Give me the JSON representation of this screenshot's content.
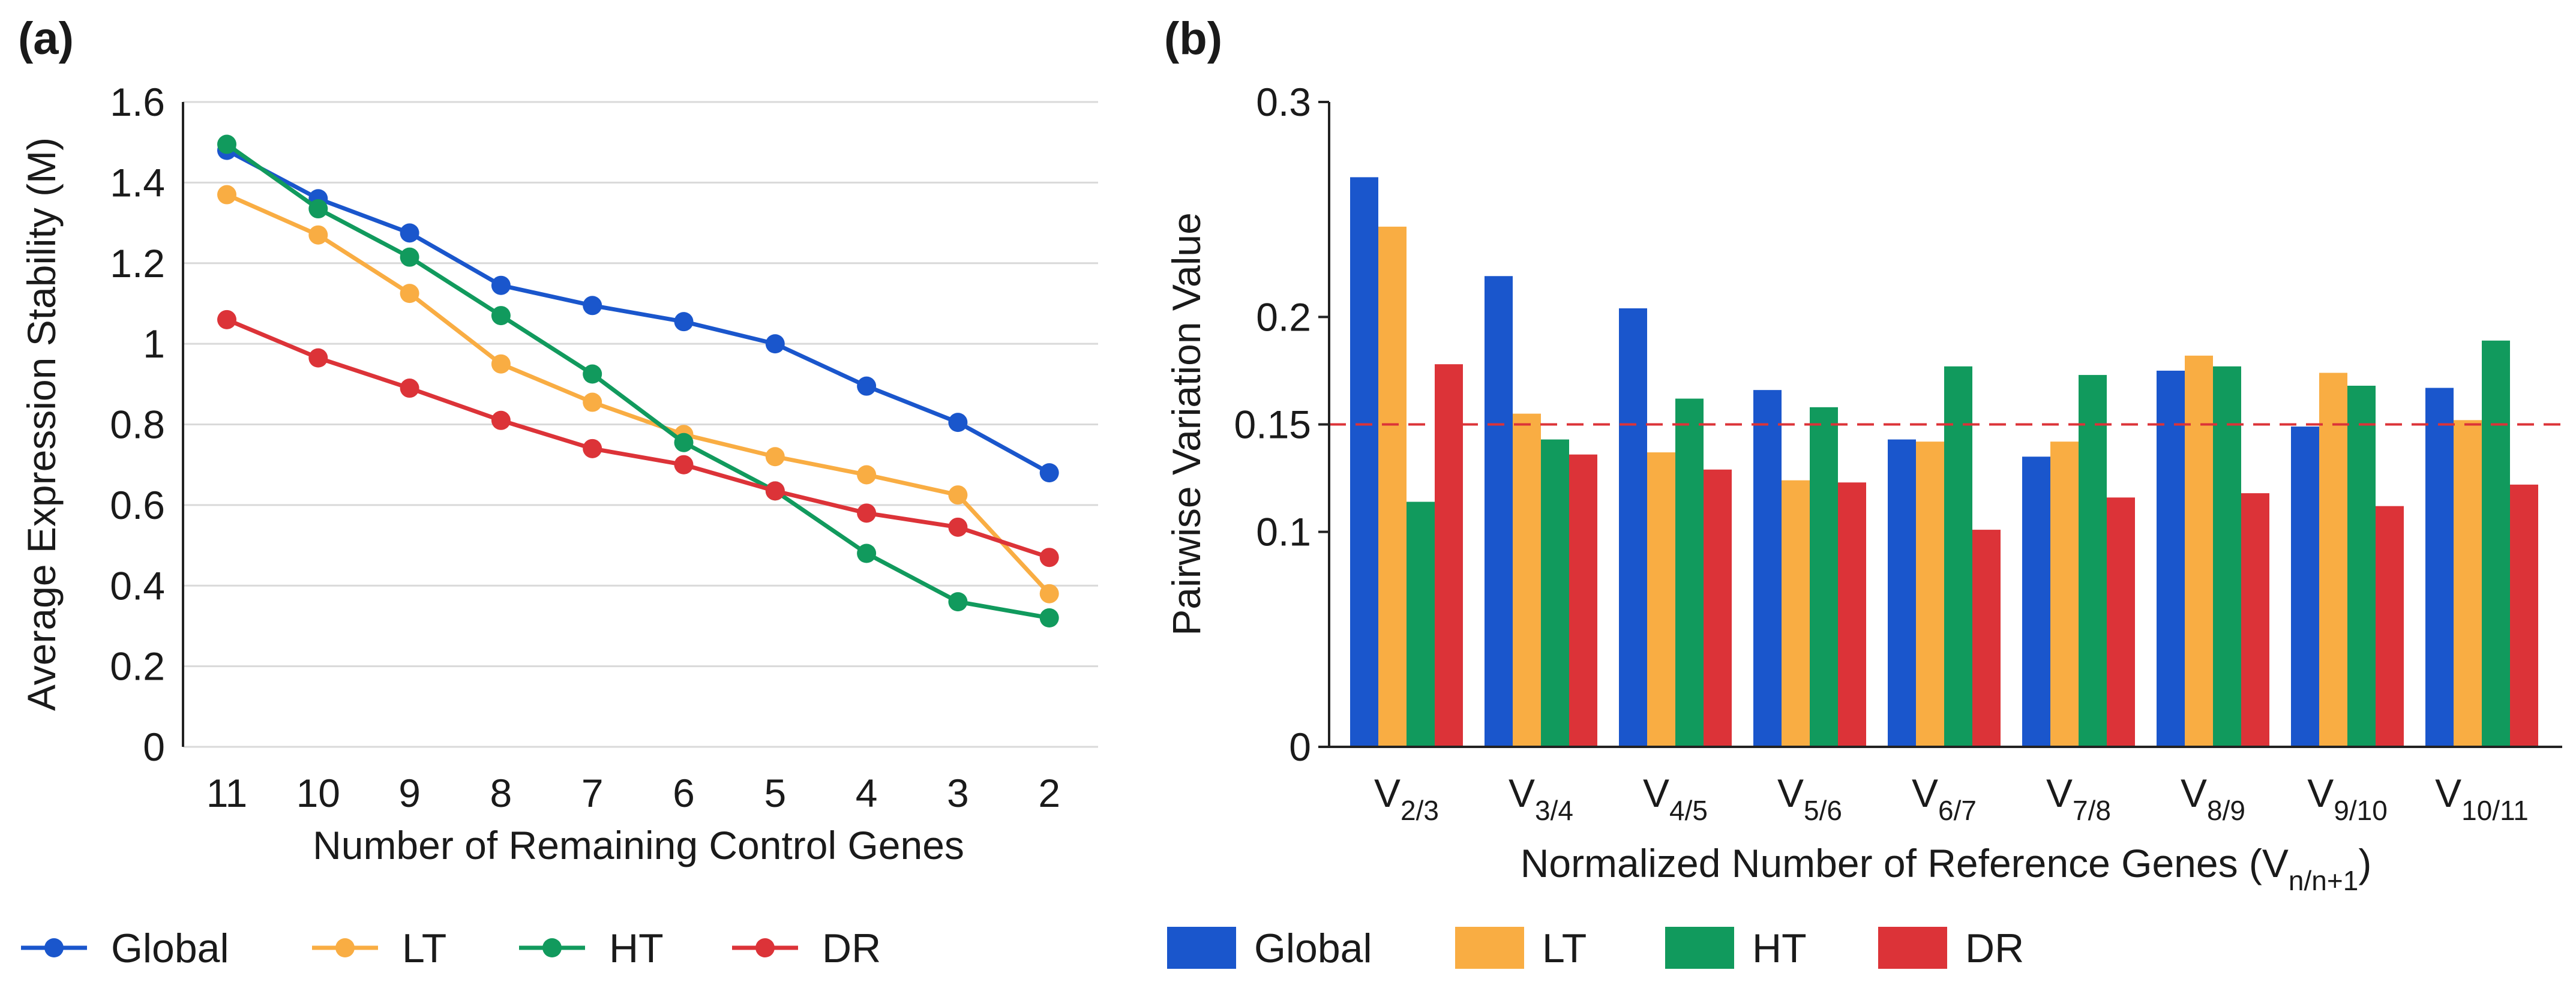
{
  "chart_data": [
    {
      "panel_label": "(a)",
      "type": "line",
      "categories": [
        "11",
        "10",
        "9",
        "8",
        "7",
        "6",
        "5",
        "4",
        "3",
        "2"
      ],
      "series": [
        {
          "name": "Global",
          "color": "#1a56cc",
          "values": [
            1.48,
            1.36,
            1.275,
            1.145,
            1.095,
            1.055,
            1.0,
            0.895,
            0.805,
            0.68
          ]
        },
        {
          "name": "LT",
          "color": "#f9ad43",
          "values": [
            1.37,
            1.27,
            1.125,
            0.95,
            0.855,
            0.775,
            0.72,
            0.675,
            0.625,
            0.38
          ]
        },
        {
          "name": "HT",
          "color": "#119a5d",
          "values": [
            1.495,
            1.335,
            1.215,
            1.07,
            0.925,
            0.755,
            0.635,
            0.48,
            0.36,
            0.32
          ]
        },
        {
          "name": "DR",
          "color": "#dc3338",
          "values": [
            1.06,
            0.965,
            0.89,
            0.81,
            0.74,
            0.7,
            0.635,
            0.58,
            0.545,
            0.47
          ]
        }
      ],
      "ylim": [
        0,
        1.6
      ],
      "yticks": [
        "0",
        "0.2",
        "0.4",
        "0.6",
        "0.8",
        "1",
        "1.2",
        "1.4",
        "1.6"
      ],
      "xlabel": "Number of Remaining Control Genes",
      "ylabel": "Average Expression Stability (M)",
      "grid": "horizontal",
      "legend": [
        "Global",
        "LT",
        "HT",
        "DR"
      ],
      "legend_position": "bottom"
    },
    {
      "panel_label": "(b)",
      "type": "bar",
      "categories": [
        {
          "main": "V",
          "sub": "2/3"
        },
        {
          "main": "V",
          "sub": "3/4"
        },
        {
          "main": "V",
          "sub": "4/5"
        },
        {
          "main": "V",
          "sub": "5/6"
        },
        {
          "main": "V",
          "sub": "6/7"
        },
        {
          "main": "V",
          "sub": "7/8"
        },
        {
          "main": "V",
          "sub": "8/9"
        },
        {
          "main": "V",
          "sub": "9/10"
        },
        {
          "main": "V",
          "sub": "10/11"
        }
      ],
      "series": [
        {
          "name": "Global",
          "color": "#1a56cc",
          "values": [
            0.265,
            0.219,
            0.204,
            0.166,
            0.143,
            0.135,
            0.175,
            0.149,
            0.167
          ]
        },
        {
          "name": "LT",
          "color": "#f9ad43",
          "values": [
            0.242,
            0.155,
            0.137,
            0.124,
            0.142,
            0.142,
            0.182,
            0.174,
            0.152
          ]
        },
        {
          "name": "HT",
          "color": "#119a5d",
          "values": [
            0.114,
            0.143,
            0.162,
            0.158,
            0.177,
            0.173,
            0.177,
            0.168,
            0.189
          ]
        },
        {
          "name": "DR",
          "color": "#dc3338",
          "values": [
            0.178,
            0.136,
            0.129,
            0.123,
            0.101,
            0.116,
            0.118,
            0.112,
            0.122
          ]
        }
      ],
      "ylim": [
        0,
        0.3
      ],
      "yticks": [
        "0",
        "0.1",
        "0.15",
        "0.2",
        "0.3"
      ],
      "threshold": {
        "value": 0.15,
        "color": "#dc3338",
        "style": "dashed"
      },
      "xlabel": {
        "main": "Normalized Number of Reference Genes (V",
        "sub": "n/n+1",
        "close": ")"
      },
      "ylabel": "Pairwise Variation Value",
      "grid": "none",
      "legend": [
        "Global",
        "LT",
        "HT",
        "DR"
      ],
      "legend_position": "bottom"
    }
  ]
}
